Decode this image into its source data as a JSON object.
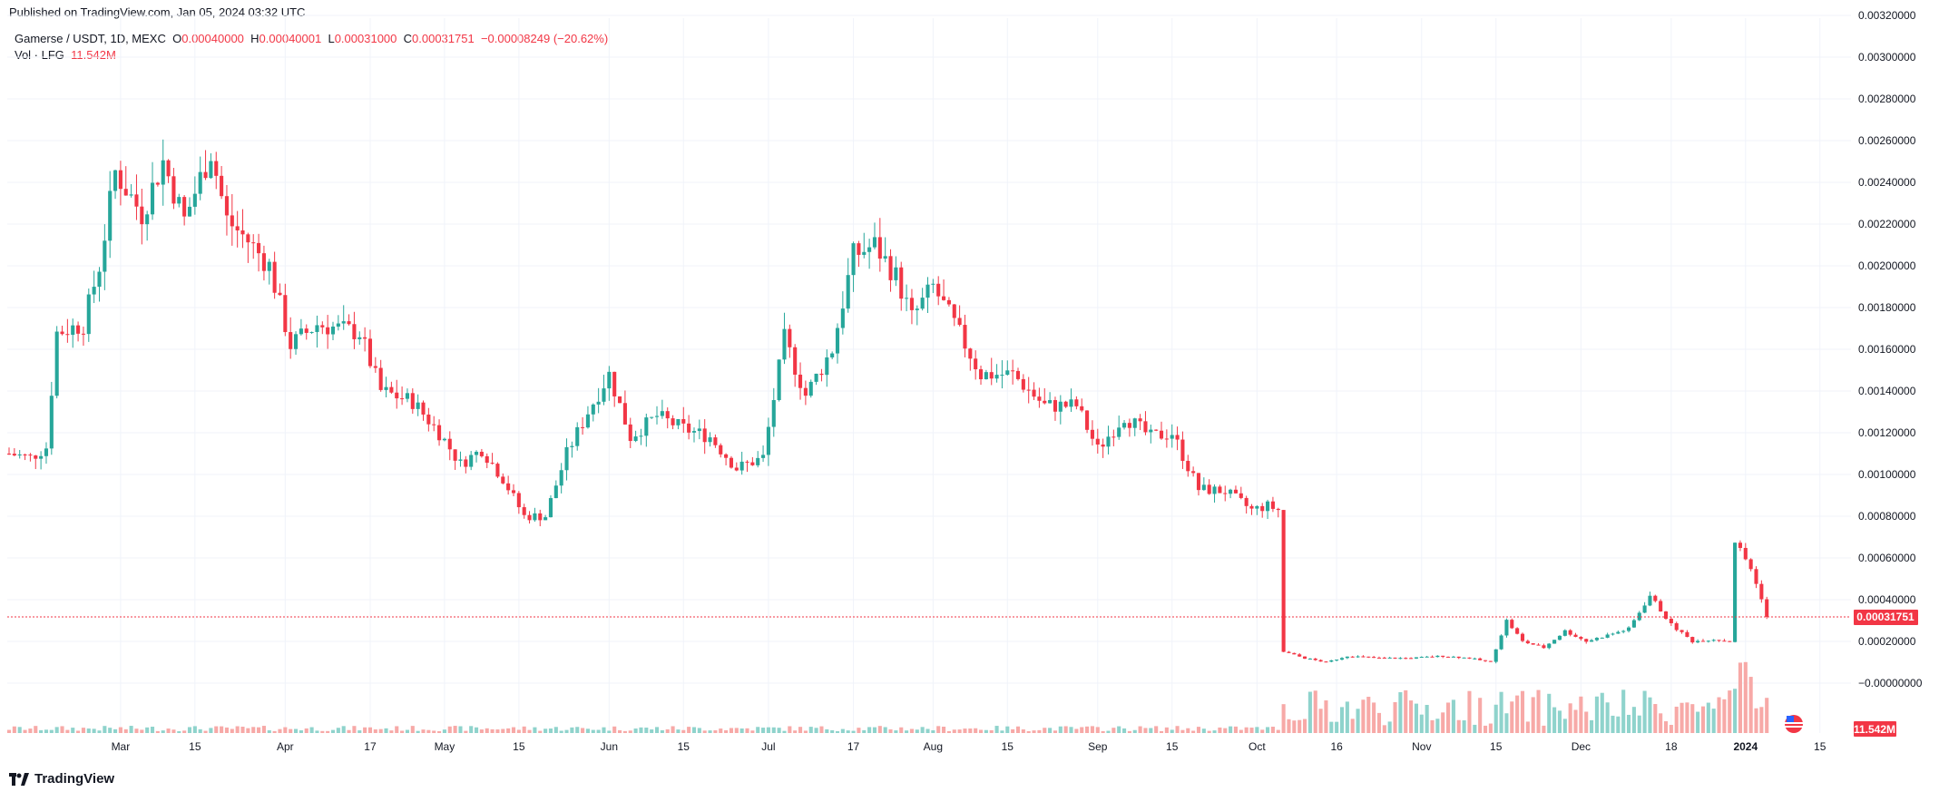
{
  "header": {
    "published": "Published on TradingView.com, Jan 05, 2024 03:32 UTC"
  },
  "legend": {
    "symbol": "Gamerse / USDT, 1D, MEXC",
    "open_label": "O",
    "open": "0.00040000",
    "high_label": "H",
    "high": "0.00040001",
    "low_label": "L",
    "low": "0.00031000",
    "close_label": "C",
    "close": "0.00031751",
    "change": "−0.00008249 (−20.62%)",
    "vol_label": "Vol · LFG",
    "vol": "11.542M"
  },
  "badges": {
    "price": "0.00031751",
    "volume": "11.542M"
  },
  "footer": {
    "brand": "TradingView"
  },
  "colors": {
    "up": "#26a69a",
    "down": "#f23645",
    "vol_up": "#8fd3cc",
    "vol_down": "#f7a9a7",
    "grid": "#f0f3fa"
  },
  "chart_data": {
    "type": "candlestick",
    "y_ticks": [
      "0.00320000",
      "0.00300000",
      "0.00280000",
      "0.00260000",
      "0.00240000",
      "0.00220000",
      "0.00200000",
      "0.00180000",
      "0.00160000",
      "0.00140000",
      "0.00120000",
      "0.00100000",
      "0.00080000",
      "0.00060000",
      "0.00040000",
      "0.00020000",
      "−0.00000000"
    ],
    "ylim": [
      -3e-05,
      0.0033
    ],
    "x_ticks": [
      "Mar",
      "15",
      "Apr",
      "17",
      "May",
      "15",
      "Jun",
      "15",
      "Jul",
      "17",
      "Aug",
      "15",
      "Sep",
      "15",
      "Oct",
      "16",
      "Nov",
      "15",
      "Dec",
      "18",
      "2024",
      "15"
    ],
    "bold_ticks": [
      "2024"
    ],
    "x_range": [
      "2023-02-08",
      "2024-01-20"
    ],
    "price_anchors": [
      [
        "2023-02-08",
        0.0011
      ],
      [
        "2023-02-12",
        0.00108
      ],
      [
        "2023-02-15",
        0.00113
      ],
      [
        "2023-02-17",
        0.00168
      ],
      [
        "2023-02-22",
        0.00172
      ],
      [
        "2023-02-25",
        0.002
      ],
      [
        "2023-02-28",
        0.00245
      ],
      [
        "2023-03-05",
        0.00225
      ],
      [
        "2023-03-09",
        0.0025
      ],
      [
        "2023-03-13",
        0.00222
      ],
      [
        "2023-03-18",
        0.00255
      ],
      [
        "2023-03-21",
        0.00222
      ],
      [
        "2023-03-25",
        0.00212
      ],
      [
        "2023-03-29",
        0.002
      ],
      [
        "2023-04-02",
        0.00162
      ],
      [
        "2023-04-07",
        0.00172
      ],
      [
        "2023-04-15",
        0.00168
      ],
      [
        "2023-04-19",
        0.0014
      ],
      [
        "2023-04-25",
        0.00135
      ],
      [
        "2023-04-30",
        0.0012
      ],
      [
        "2023-05-04",
        0.00105
      ],
      [
        "2023-05-08",
        0.00112
      ],
      [
        "2023-05-12",
        0.00098
      ],
      [
        "2023-05-16",
        0.0008
      ],
      [
        "2023-05-20",
        0.0008
      ],
      [
        "2023-05-24",
        0.0011
      ],
      [
        "2023-05-28",
        0.0013
      ],
      [
        "2023-06-01",
        0.00148
      ],
      [
        "2023-06-05",
        0.00118
      ],
      [
        "2023-06-10",
        0.00128
      ],
      [
        "2023-06-15",
        0.00122
      ],
      [
        "2023-06-20",
        0.00118
      ],
      [
        "2023-06-25",
        0.00103
      ],
      [
        "2023-06-30",
        0.00108
      ],
      [
        "2023-07-04",
        0.00165
      ],
      [
        "2023-07-08",
        0.00138
      ],
      [
        "2023-07-13",
        0.0016
      ],
      [
        "2023-07-17",
        0.00205
      ],
      [
        "2023-07-21",
        0.0021
      ],
      [
        "2023-07-25",
        0.00195
      ],
      [
        "2023-07-28",
        0.00175
      ],
      [
        "2023-08-01",
        0.0019
      ],
      [
        "2023-08-05",
        0.00172
      ],
      [
        "2023-08-10",
        0.00148
      ],
      [
        "2023-08-16",
        0.00148
      ],
      [
        "2023-08-22",
        0.00133
      ],
      [
        "2023-08-28",
        0.00133
      ],
      [
        "2023-09-01",
        0.00112
      ],
      [
        "2023-09-06",
        0.00128
      ],
      [
        "2023-09-11",
        0.00118
      ],
      [
        "2023-09-15",
        0.0012
      ],
      [
        "2023-09-20",
        0.00093
      ],
      [
        "2023-09-25",
        0.00092
      ],
      [
        "2023-09-30",
        0.00083
      ],
      [
        "2023-10-03",
        0.00085
      ],
      [
        "2023-10-05",
        0.00083
      ],
      [
        "2023-10-06",
        0.00015
      ],
      [
        "2023-10-10",
        0.00012
      ],
      [
        "2023-10-14",
        0.0001
      ],
      [
        "2023-10-18",
        0.00013
      ],
      [
        "2023-10-24",
        0.00012
      ],
      [
        "2023-10-30",
        0.00012
      ],
      [
        "2023-11-05",
        0.00013
      ],
      [
        "2023-11-10",
        0.00012
      ],
      [
        "2023-11-14",
        0.0001
      ],
      [
        "2023-11-17",
        0.0003
      ],
      [
        "2023-11-20",
        0.0002
      ],
      [
        "2023-11-24",
        0.00017
      ],
      [
        "2023-11-28",
        0.00025
      ],
      [
        "2023-12-02",
        0.0002
      ],
      [
        "2023-12-06",
        0.00023
      ],
      [
        "2023-12-10",
        0.00026
      ],
      [
        "2023-12-14",
        0.00042
      ],
      [
        "2023-12-18",
        0.00028
      ],
      [
        "2023-12-22",
        0.0002
      ],
      [
        "2023-12-26",
        0.00021
      ],
      [
        "2023-12-29",
        0.0002
      ],
      [
        "2023-12-30",
        0.00068
      ],
      [
        "2024-01-02",
        0.00055
      ],
      [
        "2024-01-05",
        0.00032
      ]
    ],
    "last_price": 0.00031751
  }
}
